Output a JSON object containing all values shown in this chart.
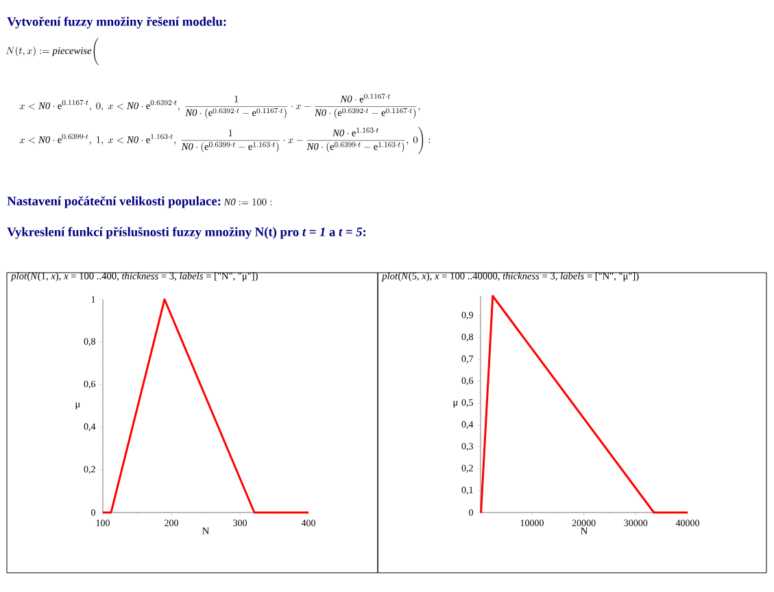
{
  "chart_data": [
    {
      "type": "line",
      "title": "*plot*(*N*(1, *x*), *x* = 100 ..400, *thickness* = 3, *labels* = [\"N\", \"μ\"])",
      "xlabel": "N",
      "ylabel": "μ",
      "annotations": [
        "Vytvoření fuzzy množiny řešení modelu:",
        "N(t,x)\\mathrel{:=}\\mathit{piecewise}\\Bigg(",
        "x < \\mathit{N0}\\cdot \\mathrm{e}^{0.1167\\cdot t},\\ 0,\\ x < \\mathit{N0}\\cdot \\mathrm{e}^{0.6392\\cdot t},\\ \\frac{1}{\\mathit{N0}\\cdot\\left(\\mathrm{e}^{0.6392\\cdot t}-\\mathrm{e}^{0.1167\\cdot t}\\right)}\\cdot x-\\frac{\\mathit{N0}\\cdot \\mathrm{e}^{0.1167\\cdot t}}{\\mathit{N0}\\cdot\\left(\\mathrm{e}^{0.6392\\cdot t}-\\mathrm{e}^{0.1167\\cdot t}\\right)},",
        "x < \\mathit{N0}\\cdot \\mathrm{e}^{0.6399\\cdot t},\\ 1,\\ x < \\mathit{N0}\\cdot \\mathrm{e}^{1.163\\cdot t},\\ \\frac{1}{\\mathit{N0}\\cdot\\left(\\mathrm{e}^{0.6399\\cdot t}-\\mathrm{e}^{1.163\\cdot t}\\right)}\\cdot x-\\frac{\\mathit{N0}\\cdot \\mathrm{e}^{1.163\\cdot t}}{\\mathit{N0}\\cdot\\left(\\mathrm{e}^{0.6399\\cdot t}-\\mathrm{e}^{1.163\\cdot t}\\right)},\\ 0\\Bigg):",
        "Nastavení počáteční velikosti populace:",
        "\\mathit{N0}\\mathrel{:=}100:",
        "Vykreslení funkcí příslušnosti fuzzy množiny N(t) pro *t = 1*  a  *t = 5*:"
      ],
      "x": [
        100,
        112,
        190,
        321,
        400
      ],
      "values": [
        0,
        0,
        1,
        0,
        0
      ],
      "color": "#ff0000",
      "xlim": [
        100,
        400
      ],
      "ylim": [
        0,
        1
      ],
      "xticks": [
        100,
        200,
        300,
        400
      ],
      "yticks": [
        0,
        {
          "value": 0.2,
          "label": "0,2"
        },
        {
          "value": 0.4,
          "label": "0,4"
        },
        {
          "value": 0.6,
          "label": "0,6"
        },
        {
          "value": 0.8,
          "label": "0,8"
        },
        1
      ]
    },
    {
      "type": "line",
      "title": "*plot*(*N*(5, *x*), *x* = 100 ..40000, *thickness* = 3, *labels* = [\"N\", \"μ\"])",
      "xlabel": "N",
      "ylabel": "μ",
      "x": [
        100,
        180,
        2440,
        33500,
        40000
      ],
      "values": [
        0,
        0,
        0.99,
        0,
        0
      ],
      "color": "#ff0000",
      "xlim": [
        100,
        40000
      ],
      "ylim": [
        0,
        0.99
      ],
      "xticks": [
        10000,
        20000,
        30000,
        40000
      ],
      "yticks": [
        0,
        {
          "value": 0.1,
          "label": "0,1"
        },
        {
          "value": 0.2,
          "label": "0,2"
        },
        {
          "value": 0.3,
          "label": "0,3"
        },
        {
          "value": 0.4,
          "label": "0,4"
        },
        {
          "value": 0.5,
          "label": "0,5"
        },
        {
          "value": 0.6,
          "label": "0,6"
        },
        {
          "value": 0.7,
          "label": "0,7"
        },
        {
          "value": 0.8,
          "label": "0,8"
        },
        {
          "value": 0.9,
          "label": "0,9"
        }
      ]
    }
  ]
}
